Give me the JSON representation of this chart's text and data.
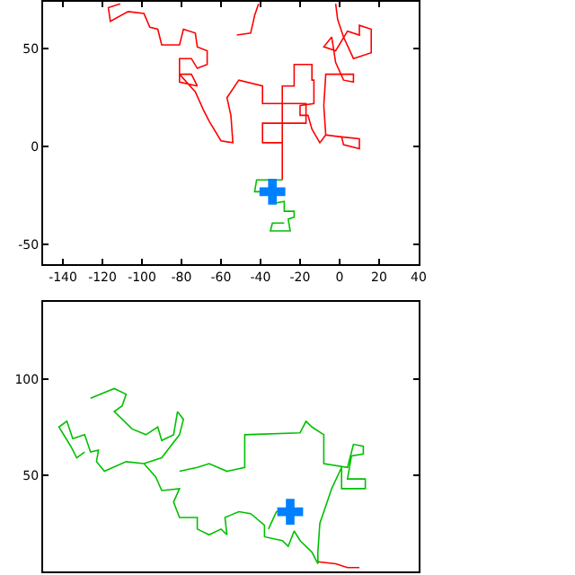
{
  "chart_data": [
    {
      "type": "line",
      "xlim": [
        -150,
        40
      ],
      "ylim": [
        -60,
        74
      ],
      "xticks": [
        -140,
        -120,
        -100,
        -80,
        -60,
        -40,
        -20,
        0,
        20,
        40
      ],
      "yticks": [
        -50,
        0,
        50
      ],
      "marker": "none",
      "line_style": "solid",
      "series": [
        {
          "color": "#ff0000",
          "x": [
            -111,
            -117,
            -116,
            -107,
            -99,
            -96,
            -92,
            -90,
            -81,
            -79,
            -73,
            -72,
            -67,
            -67,
            -72,
            -75,
            -81,
            -81,
            -72,
            -75,
            -81,
            -73,
            -69,
            -66,
            -60,
            -54,
            -55,
            -57,
            -51,
            -39,
            -39,
            -17,
            -17,
            -39,
            -39,
            -29,
            -29,
            -29,
            -29,
            -23,
            -23,
            -14,
            -14,
            -13,
            -13,
            -20,
            -20,
            -16,
            -14,
            -10,
            -7,
            1,
            2,
            10,
            10,
            1,
            -7,
            -8,
            -7,
            7,
            7,
            2,
            -2,
            -4,
            -8,
            -2,
            4,
            10,
            10,
            16,
            16,
            7,
            2,
            -1,
            -2,
            null,
            -52,
            -45,
            -43,
            -41
          ],
          "values": [
            73,
            71,
            64,
            69,
            68,
            61,
            60,
            52,
            52,
            60,
            58,
            51,
            49,
            42,
            40,
            45,
            45,
            33,
            31,
            37,
            37,
            28,
            19,
            13,
            3,
            2,
            16,
            25,
            34,
            31,
            22,
            22,
            12,
            12,
            2,
            2,
            -17,
            2,
            31,
            31,
            42,
            42,
            34,
            34,
            22,
            21,
            16,
            16,
            9,
            2,
            6,
            5,
            1,
            -1,
            4,
            5,
            6,
            21,
            37,
            37,
            33,
            34,
            43,
            56,
            51,
            49,
            59,
            57,
            62,
            60,
            48,
            45,
            56,
            65,
            73,
            null,
            57,
            58,
            67,
            73
          ]
        },
        {
          "color": "#00c000",
          "x": [
            -29,
            -42,
            -43,
            -34,
            -34,
            -28,
            -28,
            -23,
            -23,
            -26,
            -25,
            -35,
            -34,
            -28
          ],
          "values": [
            -17,
            -17,
            -23,
            -23,
            -29,
            -28,
            -33,
            -33,
            -36,
            -37,
            -43,
            -43,
            -39,
            -39
          ]
        },
        {
          "type": "scatter",
          "marker": "cross",
          "color": "#0080ff",
          "x": [
            -34
          ],
          "values": [
            -23
          ]
        }
      ]
    },
    {
      "type": "line",
      "xlim": [
        -150,
        40
      ],
      "ylim": [
        0,
        140
      ],
      "yticks": [
        50,
        100
      ],
      "tick_labels": "y",
      "marker": "none",
      "line_style": "solid",
      "series": [
        {
          "color": "#ff0000",
          "x": [
            -11,
            -2,
            4,
            10
          ],
          "values": [
            5,
            4,
            2,
            2
          ]
        },
        {
          "color": "#00c000",
          "x": [
            -126,
            -114,
            -108,
            -110,
            -114,
            -105,
            -98,
            -92,
            -90,
            -84,
            -82,
            -79,
            -81,
            -90,
            -99,
            -108,
            -119,
            -123,
            -122,
            -126,
            -129,
            -135,
            -138,
            -142,
            -136,
            -133,
            -129,
            null,
            -99,
            -93,
            -90,
            -81,
            -84,
            -81,
            -72,
            -72,
            -66,
            -60,
            -57,
            -58,
            -51,
            -45,
            -38,
            -38,
            -29,
            -26,
            -23,
            -20,
            -14,
            -11,
            null,
            -81,
            -72,
            -66,
            -57,
            -48,
            -48,
            -20,
            -17,
            -14,
            -8,
            -8,
            4,
            7,
            12,
            12,
            6,
            4,
            13,
            13,
            1,
            1,
            -4,
            -7,
            -10,
            -11,
            -11,
            null,
            -36,
            -32,
            -23
          ],
          "values": [
            90,
            95,
            92,
            86,
            83,
            74,
            71,
            75,
            68,
            71,
            83,
            79,
            71,
            59,
            56,
            57,
            52,
            57,
            63,
            62,
            71,
            69,
            78,
            75,
            65,
            59,
            62,
            null,
            56,
            49,
            42,
            43,
            36,
            28,
            28,
            22,
            19,
            22,
            19,
            28,
            31,
            30,
            24,
            18,
            16,
            13,
            21,
            16,
            10,
            4,
            null,
            52,
            54,
            56,
            52,
            54,
            71,
            72,
            78,
            75,
            71,
            56,
            54,
            66,
            65,
            61,
            60,
            48,
            48,
            43,
            43,
            54,
            43,
            34,
            25,
            10,
            4,
            null,
            22,
            31,
            34
          ]
        },
        {
          "type": "scatter",
          "marker": "cross",
          "color": "#0080ff",
          "x": [
            -25
          ],
          "values": [
            31
          ]
        }
      ]
    }
  ]
}
